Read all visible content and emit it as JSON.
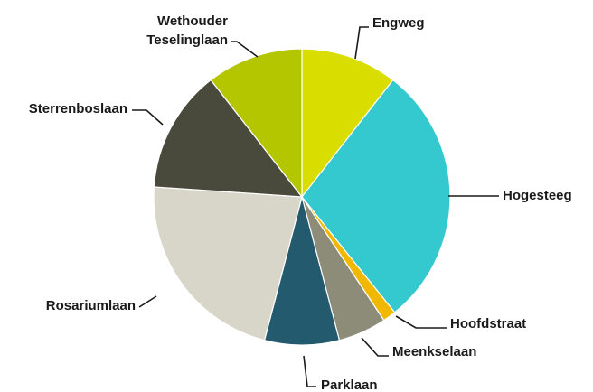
{
  "chart_data": {
    "type": "pie",
    "title": "",
    "legend": "none",
    "slices": [
      {
        "label": "Engweg",
        "value": 11,
        "color": "#dadd00"
      },
      {
        "label": "Hogesteeg",
        "value": 30,
        "color": "#34c8cf"
      },
      {
        "label": "Hoofdstraat",
        "value": 1.5,
        "color": "#f0b800"
      },
      {
        "label": "Meenkselaan",
        "value": 5.5,
        "color": "#8c8c78"
      },
      {
        "label": "Parklaan",
        "value": 8.5,
        "color": "#245a6d"
      },
      {
        "label": "Rosariumlaan",
        "value": 23,
        "color": "#d7d6c8"
      },
      {
        "label": "Sterrenboslaan",
        "value": 14,
        "color": "#4a4a3c"
      },
      {
        "label": "Wethouder Teselinglaan",
        "value": 11,
        "color": "#b3c600"
      }
    ]
  }
}
